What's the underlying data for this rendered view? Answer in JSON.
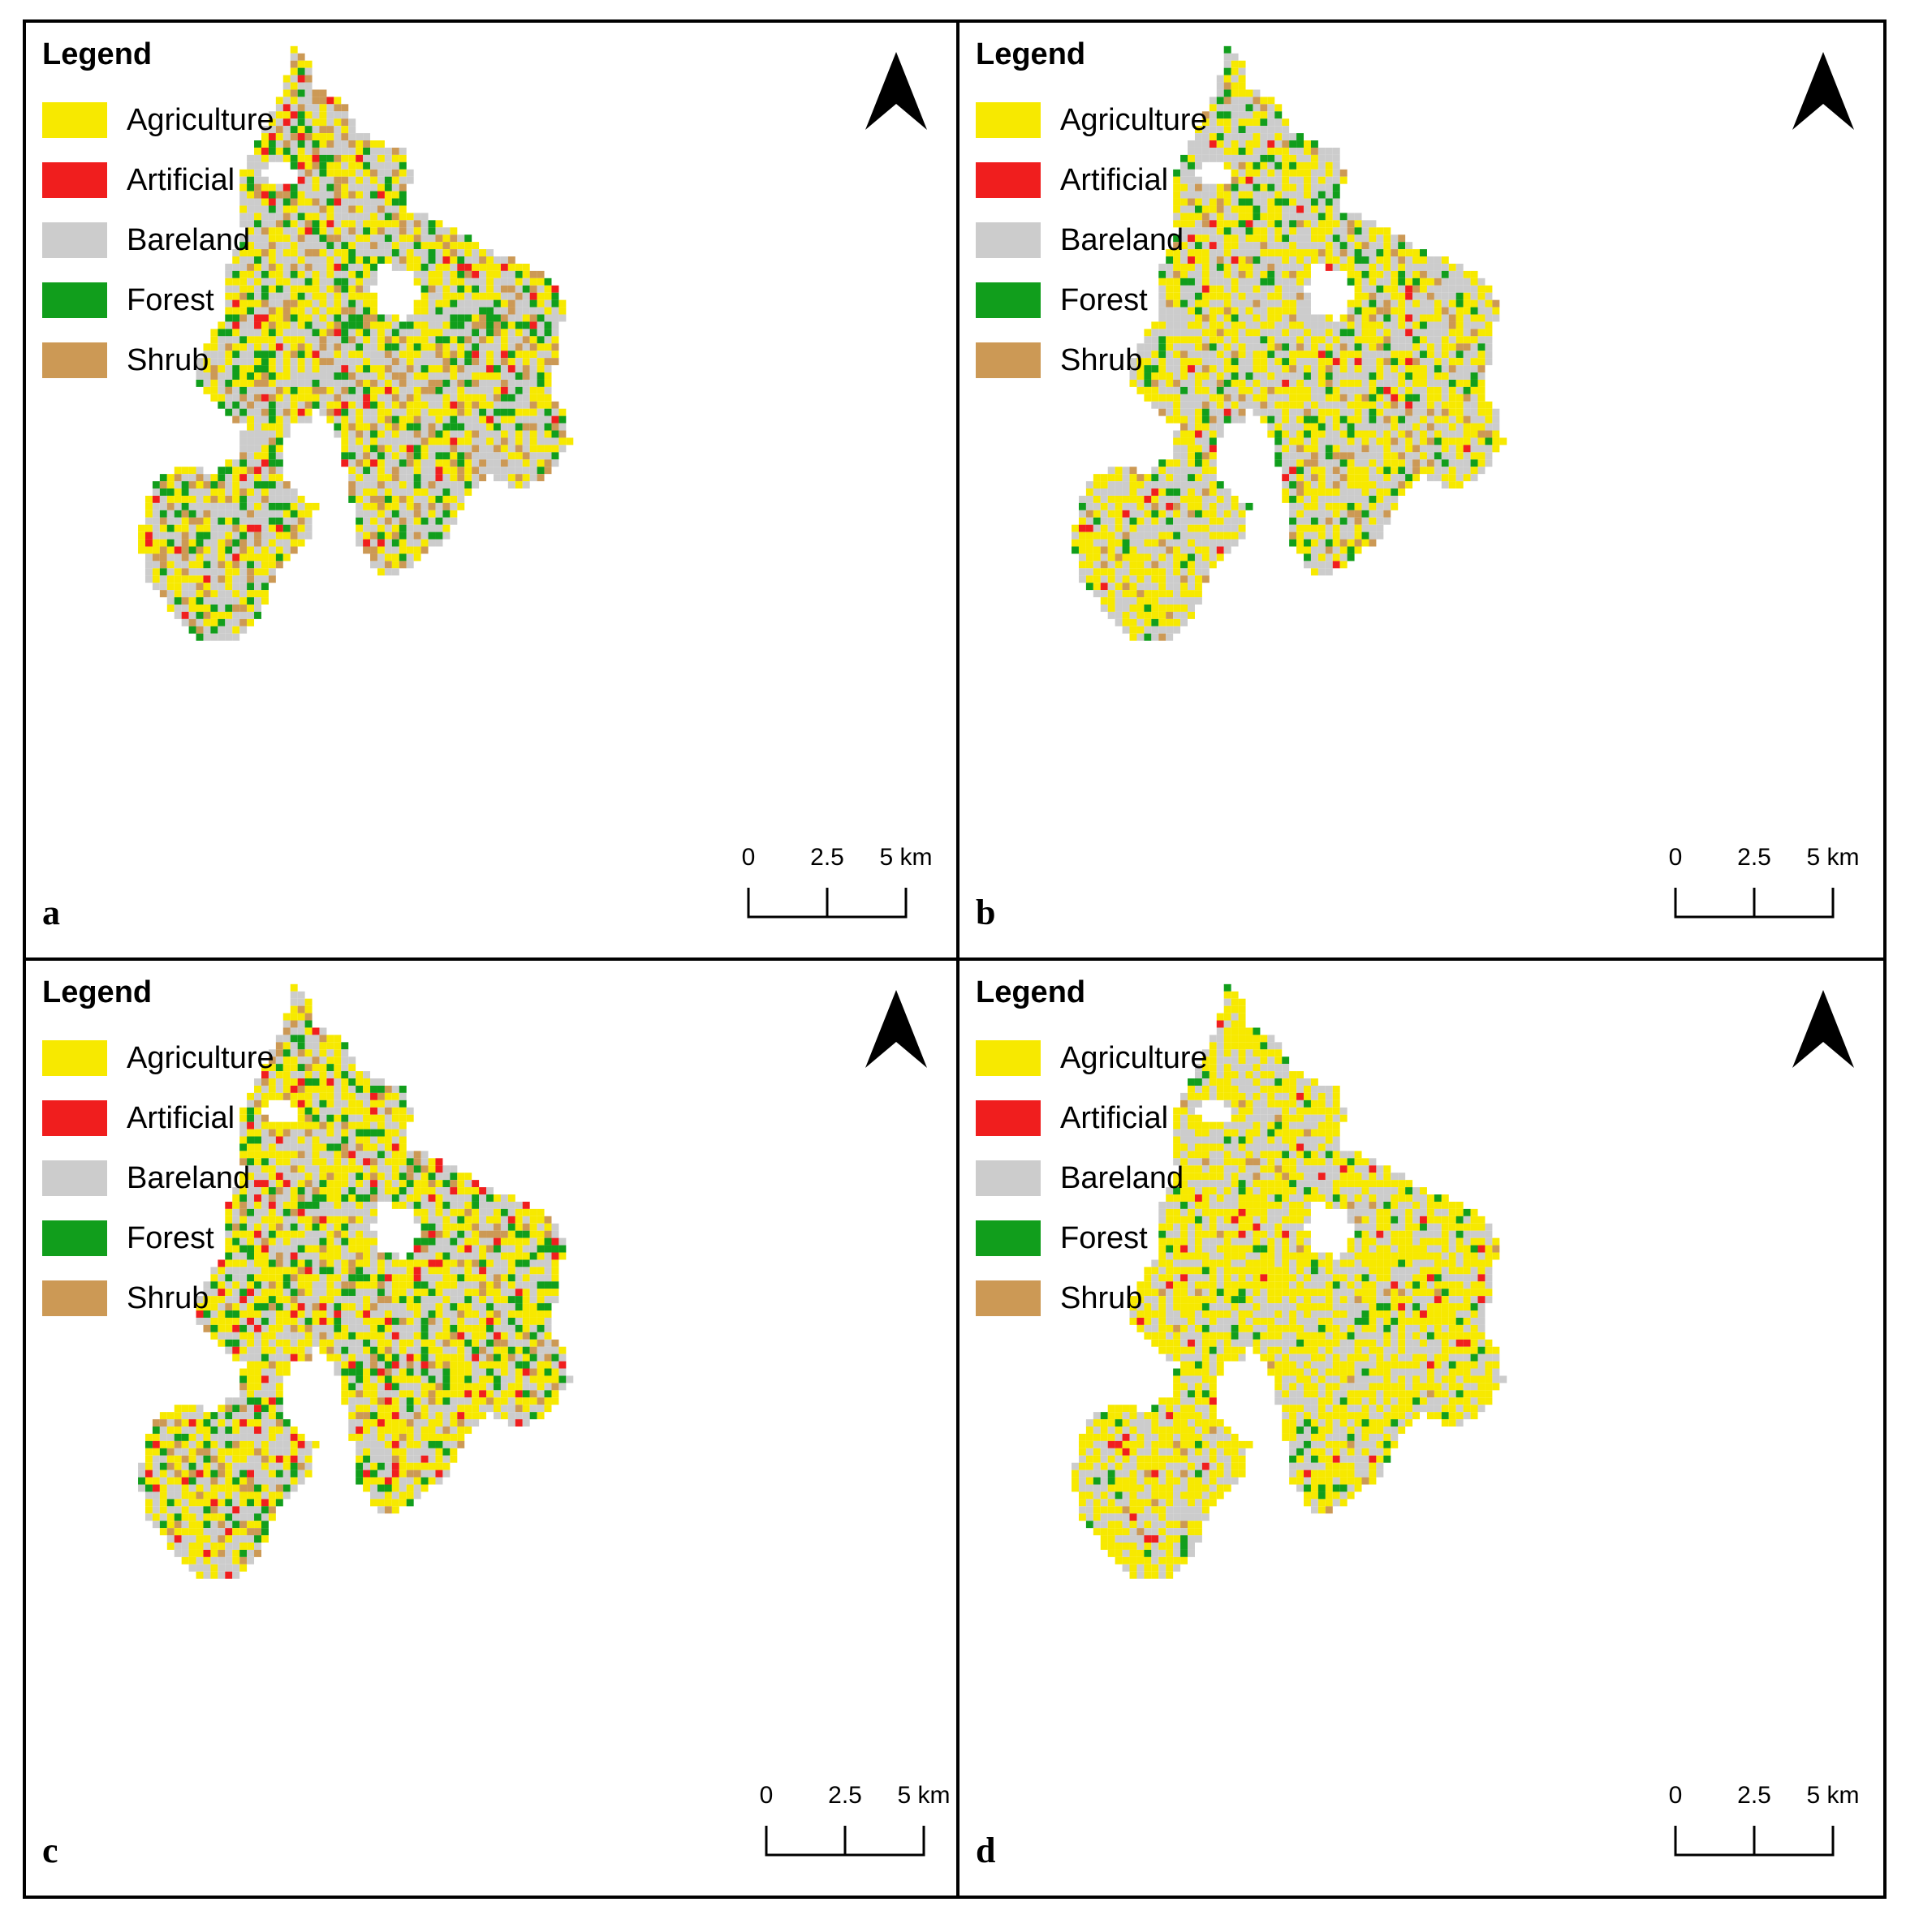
{
  "legend": {
    "title": "Legend",
    "items": [
      {
        "label": "Agriculture",
        "color": "#f7e900"
      },
      {
        "label": "Artificial",
        "color": "#f01e1e"
      },
      {
        "label": "Bareland",
        "color": "#cccccc"
      },
      {
        "label": "Forest",
        "color": "#119e1c"
      },
      {
        "label": "Shrub",
        "color": "#cc9955"
      }
    ]
  },
  "scale": {
    "labels": [
      "0",
      "2.5",
      "5 km"
    ]
  },
  "panels": [
    {
      "letter": "a",
      "mix": {
        "Agriculture": 0.3,
        "Artificial": 0.03,
        "Bareland": 0.42,
        "Forest": 0.13,
        "Shrub": 0.12
      }
    },
    {
      "letter": "b",
      "mix": {
        "Agriculture": 0.38,
        "Artificial": 0.02,
        "Bareland": 0.45,
        "Forest": 0.09,
        "Shrub": 0.06
      }
    },
    {
      "letter": "c",
      "mix": {
        "Agriculture": 0.4,
        "Artificial": 0.05,
        "Bareland": 0.36,
        "Forest": 0.11,
        "Shrub": 0.08
      }
    },
    {
      "letter": "d",
      "mix": {
        "Agriculture": 0.55,
        "Artificial": 0.02,
        "Bareland": 0.36,
        "Forest": 0.05,
        "Shrub": 0.02
      }
    }
  ]
}
